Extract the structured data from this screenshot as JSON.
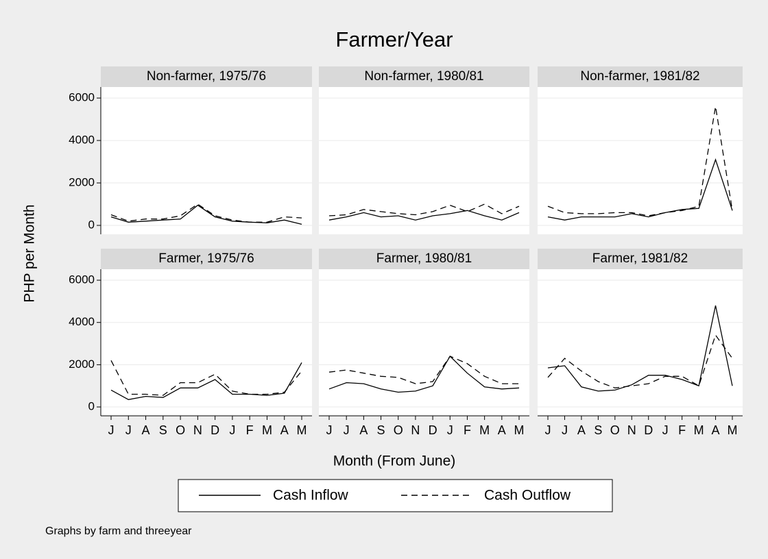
{
  "title": "Farmer/Year",
  "y_label": "PHP per Month",
  "x_label": "Month (From June)",
  "note": "Graphs by farm and threeyear",
  "chart_data": [
    {
      "type": "line",
      "title": "Non-farmer, 1975/76",
      "ylim": [
        -420,
        6520
      ],
      "yticks": [
        0,
        2000,
        4000,
        6000
      ],
      "grid": true,
      "series": [
        {
          "name": "Cash Inflow",
          "color": "#000000",
          "style": "solid",
          "values": [
            400,
            150,
            200,
            250,
            300,
            950,
            400,
            200,
            150,
            120,
            250,
            50
          ]
        },
        {
          "name": "Cash Outflow",
          "color": "#000000",
          "style": "dashed",
          "values": [
            500,
            200,
            300,
            300,
            450,
            1000,
            450,
            250,
            150,
            150,
            400,
            350
          ]
        }
      ]
    },
    {
      "type": "line",
      "title": "Non-farmer, 1980/81",
      "ylim": [
        -420,
        6520
      ],
      "yticks": [
        0,
        2000,
        4000,
        6000
      ],
      "grid": true,
      "series": [
        {
          "color": "#000000",
          "style": "solid",
          "values": [
            250,
            400,
            600,
            400,
            450,
            250,
            450,
            550,
            700,
            450,
            250,
            600
          ]
        },
        {
          "color": "#000000",
          "style": "dashed",
          "values": [
            450,
            500,
            750,
            650,
            550,
            500,
            650,
            950,
            650,
            1000,
            550,
            900
          ]
        }
      ]
    },
    {
      "type": "line",
      "title": "Non-farmer, 1981/82",
      "ylim": [
        -420,
        6520
      ],
      "yticks": [
        0,
        2000,
        4000,
        6000
      ],
      "grid": true,
      "series": [
        {
          "color": "#000000",
          "style": "solid",
          "values": [
            400,
            250,
            400,
            400,
            400,
            550,
            400,
            600,
            750,
            800,
            3100,
            700
          ]
        },
        {
          "color": "#000000",
          "style": "dashed",
          "values": [
            900,
            600,
            550,
            550,
            600,
            600,
            450,
            600,
            700,
            900,
            5600,
            700
          ]
        }
      ]
    },
    {
      "type": "line",
      "title": "Farmer, 1975/76",
      "ylim": [
        -420,
        6520
      ],
      "yticks": [
        0,
        2000,
        4000,
        6000
      ],
      "grid": true,
      "categories": [
        "J",
        "J",
        "A",
        "S",
        "O",
        "N",
        "D",
        "J",
        "F",
        "M",
        "A",
        "M"
      ],
      "series": [
        {
          "color": "#000000",
          "style": "solid",
          "values": [
            800,
            350,
            500,
            450,
            900,
            900,
            1300,
            600,
            600,
            550,
            650,
            2100
          ]
        },
        {
          "color": "#000000",
          "style": "dashed",
          "values": [
            2200,
            600,
            600,
            550,
            1150,
            1150,
            1550,
            750,
            600,
            600,
            700,
            1700
          ]
        }
      ]
    },
    {
      "type": "line",
      "title": "Farmer, 1980/81",
      "ylim": [
        -420,
        6520
      ],
      "yticks": [
        0,
        2000,
        4000,
        6000
      ],
      "grid": true,
      "categories": [
        "J",
        "J",
        "A",
        "S",
        "O",
        "N",
        "D",
        "J",
        "F",
        "M",
        "A",
        "M"
      ],
      "series": [
        {
          "color": "#000000",
          "style": "solid",
          "values": [
            850,
            1150,
            1100,
            850,
            700,
            750,
            1000,
            2400,
            1600,
            950,
            850,
            900
          ]
        },
        {
          "color": "#000000",
          "style": "dashed",
          "values": [
            1650,
            1750,
            1600,
            1450,
            1400,
            1100,
            1200,
            2400,
            2050,
            1450,
            1100,
            1100
          ]
        }
      ]
    },
    {
      "type": "line",
      "title": "Farmer, 1981/82",
      "ylim": [
        -420,
        6520
      ],
      "yticks": [
        0,
        2000,
        4000,
        6000
      ],
      "grid": true,
      "categories": [
        "J",
        "J",
        "A",
        "S",
        "O",
        "N",
        "D",
        "J",
        "F",
        "M",
        "A",
        "M"
      ],
      "series": [
        {
          "color": "#000000",
          "style": "solid",
          "values": [
            1850,
            1950,
            950,
            750,
            800,
            1050,
            1500,
            1500,
            1300,
            1000,
            4800,
            1000
          ]
        },
        {
          "color": "#000000",
          "style": "dashed",
          "values": [
            1400,
            2300,
            1700,
            1200,
            900,
            1000,
            1100,
            1450,
            1450,
            1000,
            3400,
            2300
          ]
        }
      ]
    }
  ]
}
